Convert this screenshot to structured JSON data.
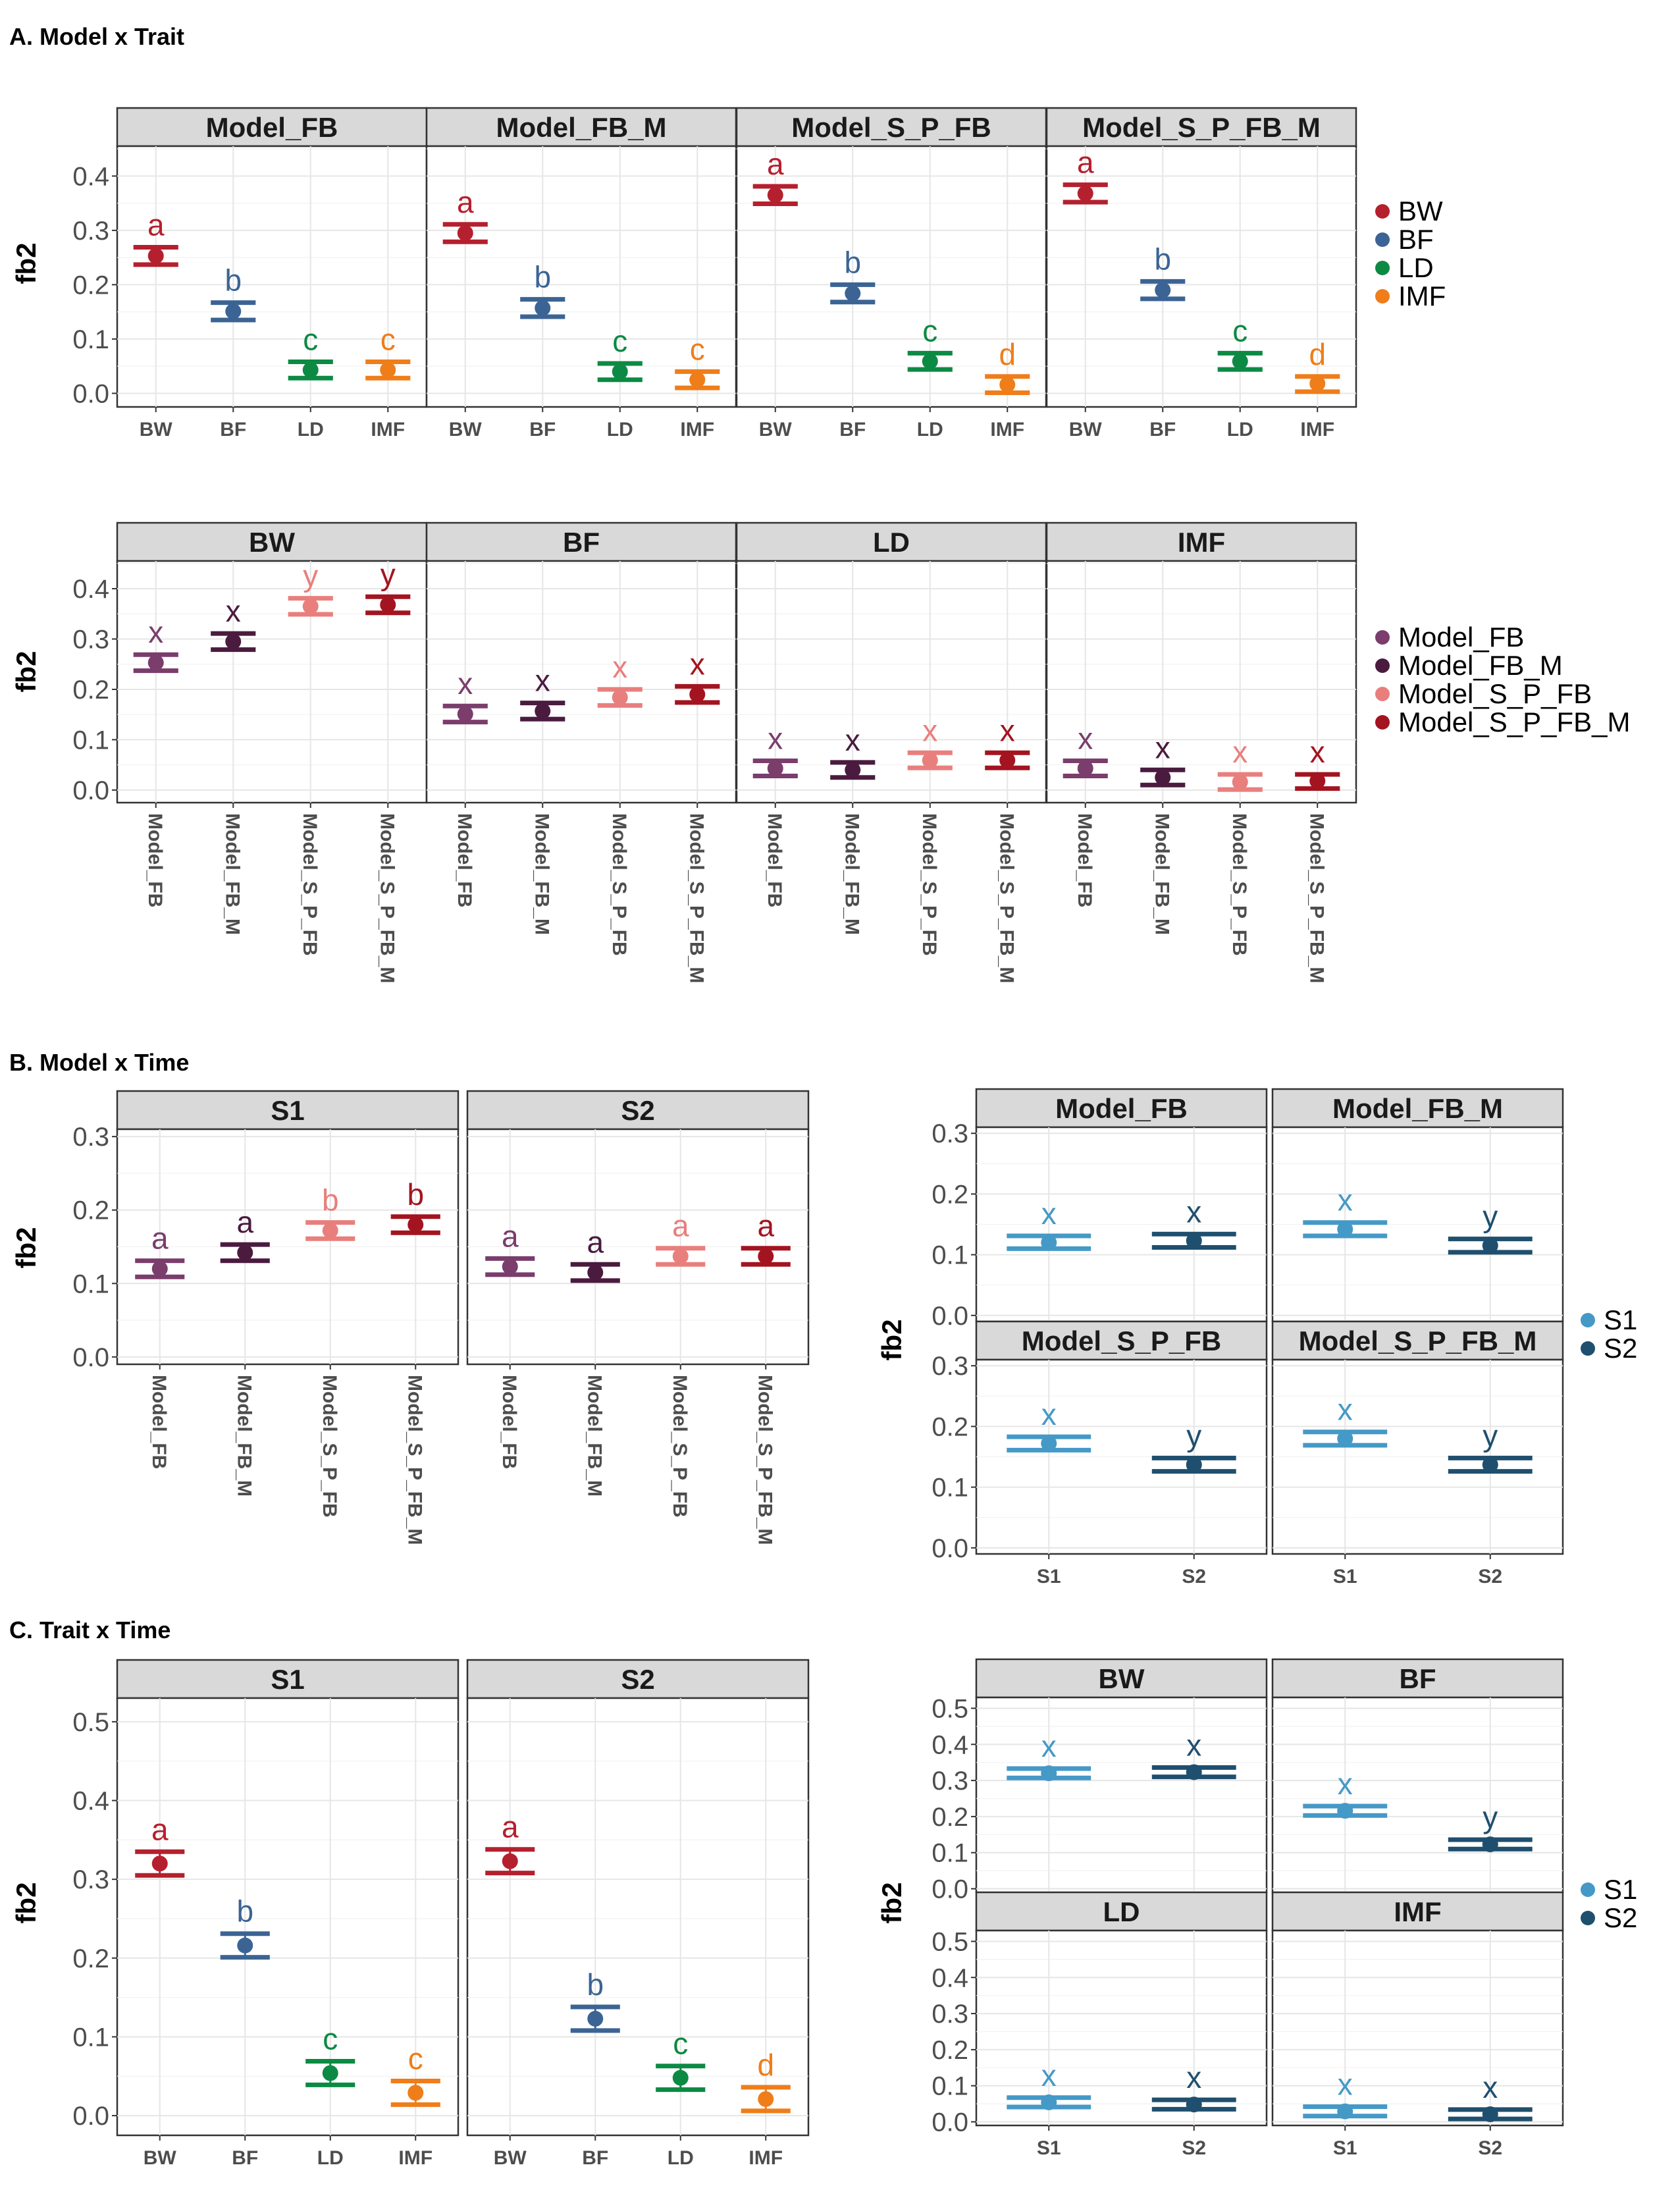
{
  "colors": {
    "BW": "#b5202e",
    "BF": "#3b6494",
    "LD": "#0c8a43",
    "IMF": "#ef7d1a",
    "Model_FB": "#7a3d6c",
    "Model_FB_M": "#4a1b3f",
    "Model_S_P_FB": "#e97f7d",
    "Model_S_P_FB_M": "#a31420",
    "S1": "#4499c7",
    "S2": "#1f4f6e"
  },
  "chart_data": [
    {
      "type": "scatter",
      "section_title": "A. Model x Trait",
      "ylabel": "fb2",
      "ylim": [
        -0.025,
        0.455
      ],
      "yticks": [
        0.0,
        0.1,
        0.2,
        0.3,
        0.4
      ],
      "categories": [
        "BW",
        "BF",
        "LD",
        "IMF"
      ],
      "legend": [
        "BW",
        "BF",
        "LD",
        "IMF"
      ],
      "facets": [
        {
          "label": "Model_FB",
          "points": [
            {
              "x": "BW",
              "y": 0.253,
              "lo": 0.237,
              "hi": 0.269,
              "letter": "a"
            },
            {
              "x": "BF",
              "y": 0.151,
              "lo": 0.135,
              "hi": 0.167,
              "letter": "b"
            },
            {
              "x": "LD",
              "y": 0.043,
              "lo": 0.028,
              "hi": 0.058,
              "letter": "c"
            },
            {
              "x": "IMF",
              "y": 0.043,
              "lo": 0.028,
              "hi": 0.058,
              "letter": "c"
            }
          ]
        },
        {
          "label": "Model_FB_M",
          "points": [
            {
              "x": "BW",
              "y": 0.295,
              "lo": 0.279,
              "hi": 0.311,
              "letter": "a"
            },
            {
              "x": "BF",
              "y": 0.157,
              "lo": 0.141,
              "hi": 0.173,
              "letter": "b"
            },
            {
              "x": "LD",
              "y": 0.04,
              "lo": 0.025,
              "hi": 0.055,
              "letter": "c"
            },
            {
              "x": "IMF",
              "y": 0.025,
              "lo": 0.01,
              "hi": 0.04,
              "letter": "c"
            }
          ]
        },
        {
          "label": "Model_S_P_FB",
          "points": [
            {
              "x": "BW",
              "y": 0.365,
              "lo": 0.349,
              "hi": 0.381,
              "letter": "a"
            },
            {
              "x": "BF",
              "y": 0.184,
              "lo": 0.168,
              "hi": 0.2,
              "letter": "b"
            },
            {
              "x": "LD",
              "y": 0.059,
              "lo": 0.044,
              "hi": 0.074,
              "letter": "c"
            },
            {
              "x": "IMF",
              "y": 0.016,
              "lo": 0.001,
              "hi": 0.031,
              "letter": "d"
            }
          ]
        },
        {
          "label": "Model_S_P_FB_M",
          "points": [
            {
              "x": "BW",
              "y": 0.368,
              "lo": 0.352,
              "hi": 0.384,
              "letter": "a"
            },
            {
              "x": "BF",
              "y": 0.19,
              "lo": 0.174,
              "hi": 0.206,
              "letter": "b"
            },
            {
              "x": "LD",
              "y": 0.059,
              "lo": 0.044,
              "hi": 0.074,
              "letter": "c"
            },
            {
              "x": "IMF",
              "y": 0.018,
              "lo": 0.003,
              "hi": 0.031,
              "letter": "d"
            }
          ]
        }
      ]
    },
    {
      "type": "scatter",
      "ylabel": "fb2",
      "ylim": [
        -0.025,
        0.455
      ],
      "yticks": [
        0.0,
        0.1,
        0.2,
        0.3,
        0.4
      ],
      "categories": [
        "Model_FB",
        "Model_FB_M",
        "Model_S_P_FB",
        "Model_S_P_FB_M"
      ],
      "legend": [
        "Model_FB",
        "Model_FB_M",
        "Model_S_P_FB",
        "Model_S_P_FB_M"
      ],
      "facets": [
        {
          "label": "BW",
          "points": [
            {
              "x": "Model_FB",
              "y": 0.253,
              "lo": 0.237,
              "hi": 0.269,
              "letter": "x"
            },
            {
              "x": "Model_FB_M",
              "y": 0.295,
              "lo": 0.279,
              "hi": 0.311,
              "letter": "x"
            },
            {
              "x": "Model_S_P_FB",
              "y": 0.365,
              "lo": 0.349,
              "hi": 0.381,
              "letter": "y"
            },
            {
              "x": "Model_S_P_FB_M",
              "y": 0.368,
              "lo": 0.352,
              "hi": 0.384,
              "letter": "y"
            }
          ]
        },
        {
          "label": "BF",
          "points": [
            {
              "x": "Model_FB",
              "y": 0.151,
              "lo": 0.135,
              "hi": 0.167,
              "letter": "x"
            },
            {
              "x": "Model_FB_M",
              "y": 0.157,
              "lo": 0.141,
              "hi": 0.173,
              "letter": "x"
            },
            {
              "x": "Model_S_P_FB",
              "y": 0.184,
              "lo": 0.168,
              "hi": 0.2,
              "letter": "x"
            },
            {
              "x": "Model_S_P_FB_M",
              "y": 0.19,
              "lo": 0.174,
              "hi": 0.206,
              "letter": "x"
            }
          ]
        },
        {
          "label": "LD",
          "points": [
            {
              "x": "Model_FB",
              "y": 0.043,
              "lo": 0.028,
              "hi": 0.058,
              "letter": "x"
            },
            {
              "x": "Model_FB_M",
              "y": 0.04,
              "lo": 0.025,
              "hi": 0.055,
              "letter": "x"
            },
            {
              "x": "Model_S_P_FB",
              "y": 0.059,
              "lo": 0.044,
              "hi": 0.074,
              "letter": "x"
            },
            {
              "x": "Model_S_P_FB_M",
              "y": 0.059,
              "lo": 0.044,
              "hi": 0.074,
              "letter": "x"
            }
          ]
        },
        {
          "label": "IMF",
          "points": [
            {
              "x": "Model_FB",
              "y": 0.043,
              "lo": 0.028,
              "hi": 0.058,
              "letter": "x"
            },
            {
              "x": "Model_FB_M",
              "y": 0.025,
              "lo": 0.01,
              "hi": 0.04,
              "letter": "x"
            },
            {
              "x": "Model_S_P_FB",
              "y": 0.016,
              "lo": 0.001,
              "hi": 0.031,
              "letter": "x"
            },
            {
              "x": "Model_S_P_FB_M",
              "y": 0.018,
              "lo": 0.003,
              "hi": 0.031,
              "letter": "x"
            }
          ]
        }
      ]
    },
    {
      "type": "scatter",
      "section_title": "B. Model x Time",
      "ylabel": "fb2",
      "ylim": [
        -0.01,
        0.31
      ],
      "yticks": [
        0.0,
        0.1,
        0.2,
        0.3
      ],
      "categories": [
        "Model_FB",
        "Model_FB_M",
        "Model_S_P_FB",
        "Model_S_P_FB_M"
      ],
      "facets": [
        {
          "label": "S1",
          "points": [
            {
              "x": "Model_FB",
              "y": 0.12,
              "lo": 0.109,
              "hi": 0.131,
              "letter": "a"
            },
            {
              "x": "Model_FB_M",
              "y": 0.142,
              "lo": 0.131,
              "hi": 0.153,
              "letter": "a"
            },
            {
              "x": "Model_S_P_FB",
              "y": 0.172,
              "lo": 0.161,
              "hi": 0.183,
              "letter": "b"
            },
            {
              "x": "Model_S_P_FB_M",
              "y": 0.18,
              "lo": 0.169,
              "hi": 0.191,
              "letter": "b"
            }
          ]
        },
        {
          "label": "S2",
          "points": [
            {
              "x": "Model_FB",
              "y": 0.123,
              "lo": 0.112,
              "hi": 0.134,
              "letter": "a"
            },
            {
              "x": "Model_FB_M",
              "y": 0.115,
              "lo": 0.104,
              "hi": 0.126,
              "letter": "a"
            },
            {
              "x": "Model_S_P_FB",
              "y": 0.137,
              "lo": 0.126,
              "hi": 0.148,
              "letter": "a"
            },
            {
              "x": "Model_S_P_FB_M",
              "y": 0.137,
              "lo": 0.126,
              "hi": 0.148,
              "letter": "a"
            }
          ]
        }
      ]
    },
    {
      "type": "scatter",
      "ylabel": "fb2",
      "ylim": [
        -0.01,
        0.31
      ],
      "yticks": [
        0.0,
        0.1,
        0.2,
        0.3
      ],
      "categories": [
        "S1",
        "S2"
      ],
      "legend": [
        "S1",
        "S2"
      ],
      "facets": [
        {
          "label": "Model_FB",
          "points": [
            {
              "x": "S1",
              "y": 0.12,
              "lo": 0.11,
              "hi": 0.131,
              "letter": "x"
            },
            {
              "x": "S2",
              "y": 0.123,
              "lo": 0.112,
              "hi": 0.134,
              "letter": "x"
            }
          ]
        },
        {
          "label": "Model_FB_M",
          "points": [
            {
              "x": "S1",
              "y": 0.142,
              "lo": 0.131,
              "hi": 0.153,
              "letter": "x"
            },
            {
              "x": "S2",
              "y": 0.115,
              "lo": 0.104,
              "hi": 0.126,
              "letter": "y"
            }
          ]
        },
        {
          "label": "Model_S_P_FB",
          "points": [
            {
              "x": "S1",
              "y": 0.172,
              "lo": 0.161,
              "hi": 0.183,
              "letter": "x"
            },
            {
              "x": "S2",
              "y": 0.137,
              "lo": 0.126,
              "hi": 0.148,
              "letter": "y"
            }
          ]
        },
        {
          "label": "Model_S_P_FB_M",
          "points": [
            {
              "x": "S1",
              "y": 0.18,
              "lo": 0.169,
              "hi": 0.191,
              "letter": "x"
            },
            {
              "x": "S2",
              "y": 0.137,
              "lo": 0.126,
              "hi": 0.148,
              "letter": "y"
            }
          ]
        }
      ]
    },
    {
      "type": "scatter",
      "section_title": "C. Trait x Time",
      "ylabel": "fb2",
      "ylim": [
        -0.025,
        0.53
      ],
      "yticks": [
        0.0,
        0.1,
        0.2,
        0.3,
        0.4,
        0.5
      ],
      "categories": [
        "BW",
        "BF",
        "LD",
        "IMF"
      ],
      "facets": [
        {
          "label": "S1",
          "points": [
            {
              "x": "BW",
              "y": 0.32,
              "lo": 0.305,
              "hi": 0.335,
              "letter": "a"
            },
            {
              "x": "BF",
              "y": 0.216,
              "lo": 0.201,
              "hi": 0.231,
              "letter": "b"
            },
            {
              "x": "LD",
              "y": 0.054,
              "lo": 0.039,
              "hi": 0.069,
              "letter": "c"
            },
            {
              "x": "IMF",
              "y": 0.029,
              "lo": 0.014,
              "hi": 0.044,
              "letter": "c"
            }
          ]
        },
        {
          "label": "S2",
          "points": [
            {
              "x": "BW",
              "y": 0.323,
              "lo": 0.308,
              "hi": 0.338,
              "letter": "a"
            },
            {
              "x": "BF",
              "y": 0.123,
              "lo": 0.108,
              "hi": 0.138,
              "letter": "b"
            },
            {
              "x": "LD",
              "y": 0.048,
              "lo": 0.033,
              "hi": 0.063,
              "letter": "c"
            },
            {
              "x": "IMF",
              "y": 0.021,
              "lo": 0.006,
              "hi": 0.036,
              "letter": "d"
            }
          ]
        }
      ]
    },
    {
      "type": "scatter",
      "ylabel": "fb2",
      "ylim": [
        -0.01,
        0.53
      ],
      "yticks": [
        0.0,
        0.1,
        0.2,
        0.3,
        0.4,
        0.5
      ],
      "categories": [
        "S1",
        "S2"
      ],
      "legend": [
        "S1",
        "S2"
      ],
      "facets": [
        {
          "label": "BW",
          "points": [
            {
              "x": "S1",
              "y": 0.32,
              "lo": 0.307,
              "hi": 0.333,
              "letter": "x"
            },
            {
              "x": "S2",
              "y": 0.323,
              "lo": 0.31,
              "hi": 0.336,
              "letter": "x"
            }
          ]
        },
        {
          "label": "BF",
          "points": [
            {
              "x": "S1",
              "y": 0.216,
              "lo": 0.203,
              "hi": 0.229,
              "letter": "x"
            },
            {
              "x": "S2",
              "y": 0.123,
              "lo": 0.11,
              "hi": 0.136,
              "letter": "y"
            }
          ]
        },
        {
          "label": "LD",
          "points": [
            {
              "x": "S1",
              "y": 0.054,
              "lo": 0.041,
              "hi": 0.067,
              "letter": "x"
            },
            {
              "x": "S2",
              "y": 0.048,
              "lo": 0.035,
              "hi": 0.061,
              "letter": "x"
            }
          ]
        },
        {
          "label": "IMF",
          "points": [
            {
              "x": "S1",
              "y": 0.029,
              "lo": 0.016,
              "hi": 0.042,
              "letter": "x"
            },
            {
              "x": "S2",
              "y": 0.021,
              "lo": 0.008,
              "hi": 0.034,
              "letter": "x"
            }
          ]
        }
      ]
    }
  ]
}
